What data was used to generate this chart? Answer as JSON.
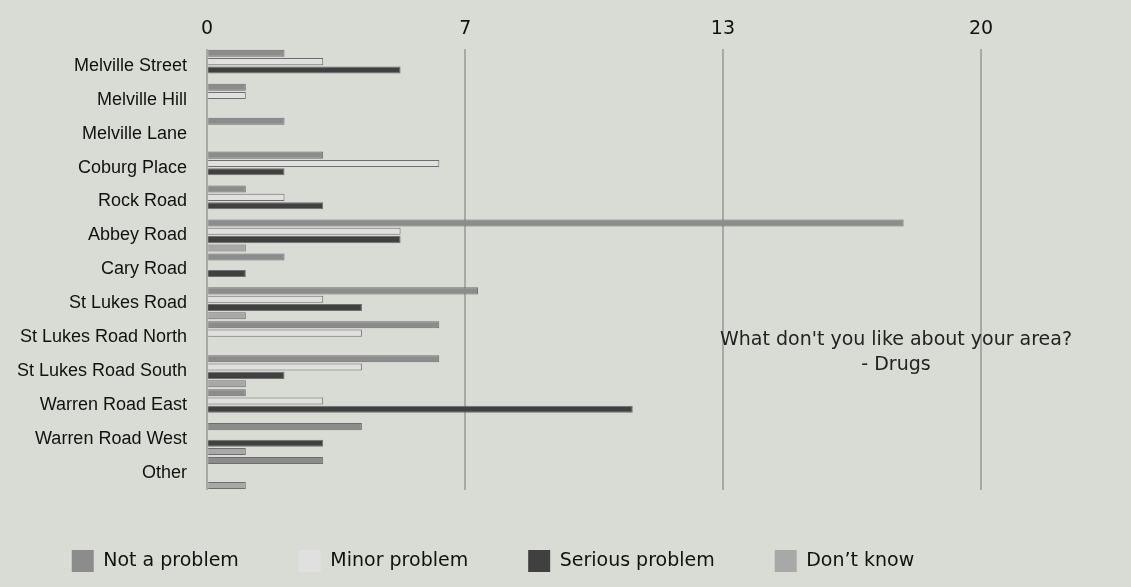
{
  "chart_data": {
    "type": "bar",
    "orientation": "horizontal",
    "title": "What don't you like about your area?",
    "subtitle": "- Drugs",
    "categories": [
      "Melville Street",
      "Melville Hill",
      "Melville Lane",
      "Coburg Place",
      "Rock Road",
      "Abbey Road",
      "Cary Road",
      "St Lukes Road",
      "St Lukes Road North",
      "St Lukes Road South",
      "Warren Road East",
      "Warren Road West",
      "Other"
    ],
    "series": [
      {
        "name": "Not a problem",
        "color": "#8c8c8c",
        "values": [
          2,
          1,
          2,
          3,
          1,
          18,
          2,
          7,
          6,
          6,
          1,
          4,
          3
        ]
      },
      {
        "name": "Minor problem",
        "color": "#e0e0e0",
        "values": [
          3,
          1,
          0,
          6,
          2,
          5,
          0,
          3,
          4,
          4,
          3,
          0,
          0
        ]
      },
      {
        "name": "Serious problem",
        "color": "#404040",
        "values": [
          5,
          0,
          0,
          2,
          3,
          5,
          1,
          4,
          0,
          2,
          11,
          3,
          0
        ]
      },
      {
        "name": "Don’t know",
        "color": "#a8a8a8",
        "values": [
          0,
          0,
          0,
          0,
          0,
          1,
          0,
          1,
          0,
          1,
          0,
          1,
          1
        ]
      }
    ],
    "xlim": [
      0,
      20
    ],
    "xticks": [
      0,
      {
        "value": 6.67,
        "label": "7"
      },
      {
        "value": 13.33,
        "label": "13"
      },
      20
    ],
    "grid": "x",
    "legend": "bottom"
  }
}
